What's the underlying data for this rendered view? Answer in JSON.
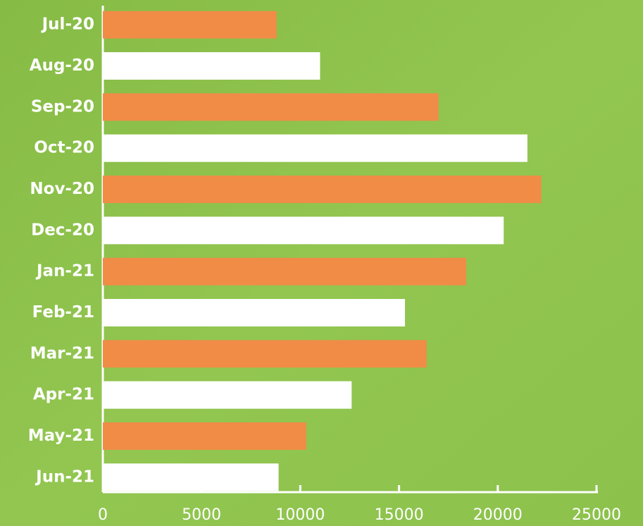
{
  "chart_data": {
    "type": "bar",
    "orientation": "horizontal",
    "categories": [
      "Jul-20",
      "Aug-20",
      "Sep-20",
      "Oct-20",
      "Nov-20",
      "Dec-20",
      "Jan-21",
      "Feb-21",
      "Mar-21",
      "Apr-21",
      "May-21",
      "Jun-21"
    ],
    "values": [
      8800,
      11000,
      17000,
      21500,
      22200,
      20300,
      18400,
      15300,
      16400,
      12600,
      10300,
      8900
    ],
    "colors": [
      "#f08c46",
      "#ffffff",
      "#f08c46",
      "#ffffff",
      "#f08c46",
      "#ffffff",
      "#f08c46",
      "#ffffff",
      "#f08c46",
      "#ffffff",
      "#f08c46",
      "#ffffff"
    ],
    "xlim": [
      0,
      25000
    ],
    "xticks": [
      0,
      5000,
      10000,
      15000,
      20000,
      25000
    ],
    "grid": false
  }
}
